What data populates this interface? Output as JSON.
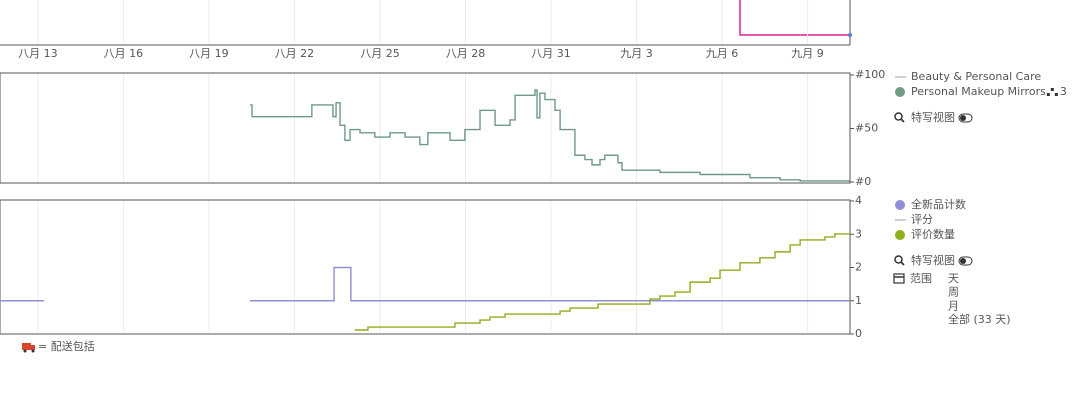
{
  "chart_data": [
    {
      "type": "line",
      "step": true,
      "xlim": [
        11.67,
        41.49
      ],
      "xticks": [
        {
          "value": 13,
          "label": "八月 13"
        },
        {
          "value": 16,
          "label": "八月 16"
        },
        {
          "value": 19,
          "label": "八月 19"
        },
        {
          "value": 22,
          "label": "八月 22"
        },
        {
          "value": 25,
          "label": "八月 25"
        },
        {
          "value": 28,
          "label": "八月 28"
        },
        {
          "value": 31,
          "label": "八月 31"
        },
        {
          "value": 34,
          "label": "九月 3"
        },
        {
          "value": 37,
          "label": "九月 6"
        },
        {
          "value": 40,
          "label": "九月 9"
        }
      ],
      "ylim": [
        0,
        100
      ],
      "yticks": [
        {
          "value": 100,
          "label": "#100"
        },
        {
          "value": 50,
          "label": "#50"
        },
        {
          "value": 0,
          "label": "#0"
        }
      ],
      "series": [
        {
          "name": "Beauty & Personal Care",
          "color": "#9aa5a0",
          "marker": "line",
          "x": [],
          "values": []
        },
        {
          "name": "Personal Makeup Mirrors",
          "badge": "3",
          "color": "#6f9a86",
          "marker": "dot",
          "x": [
            20.44,
            20.51,
            22.61,
            23.35,
            23.46,
            23.6,
            23.77,
            23.95,
            24.3,
            24.82,
            25.35,
            25.88,
            26.4,
            26.68,
            27.46,
            27.98,
            28.51,
            29.04,
            29.56,
            29.74,
            30.44,
            30.51,
            30.61,
            30.79,
            31.14,
            31.32,
            31.84,
            32.19,
            32.44,
            32.72,
            32.89,
            33.35,
            33.49,
            34.82,
            36.23,
            37.98,
            39.04,
            39.74,
            41.46
          ],
          "values": [
            72,
            61,
            72,
            61,
            74,
            53,
            39,
            49,
            46,
            42,
            46,
            42,
            35,
            46,
            39,
            49,
            67,
            53,
            58,
            81,
            86,
            60,
            83,
            77,
            67,
            49,
            25,
            21,
            16,
            21,
            25,
            18,
            11,
            9,
            7,
            4,
            2,
            1,
            0
          ]
        }
      ],
      "close_view": "特写视图"
    },
    {
      "type": "line",
      "step": true,
      "xlim": [
        11.67,
        41.49
      ],
      "ylim": [
        0,
        4
      ],
      "yticks": [
        4,
        3,
        2,
        1,
        0
      ],
      "series": [
        {
          "name": "全新品计数",
          "color": "#8f8fd6",
          "marker": "dot",
          "x": [
            11.67,
            13.21,
            13.5,
            20.44,
            23.39,
            23.98,
            41.49
          ],
          "values": [
            1,
            1,
            null,
            1,
            2,
            1,
            1
          ]
        },
        {
          "name": "评分",
          "color": "#9aa5a0",
          "marker": "line",
          "x": [],
          "values": []
        },
        {
          "name": "评价数量",
          "color": "#8fae1b",
          "marker": "dot",
          "x": [
            24.12,
            24.58,
            27.63,
            28.51,
            28.86,
            29.39,
            31.32,
            31.67,
            32.65,
            34.47,
            34.82,
            35.35,
            35.88,
            36.58,
            36.93,
            37.63,
            38.33,
            38.86,
            39.39,
            39.74,
            40.61,
            40.96,
            41.49
          ],
          "values": [
            0.12,
            0.21,
            0.33,
            0.42,
            0.51,
            0.6,
            0.69,
            0.78,
            0.9,
            1.05,
            1.14,
            1.26,
            1.56,
            1.68,
            1.92,
            2.14,
            2.29,
            2.47,
            2.68,
            2.83,
            2.92,
            3.01,
            3.01
          ]
        }
      ],
      "close_view": "特写视图",
      "range": {
        "label": "范围",
        "options": [
          "天",
          "周",
          "月",
          "全部 (33 天)"
        ]
      }
    }
  ],
  "footnote": "= 配送包括"
}
